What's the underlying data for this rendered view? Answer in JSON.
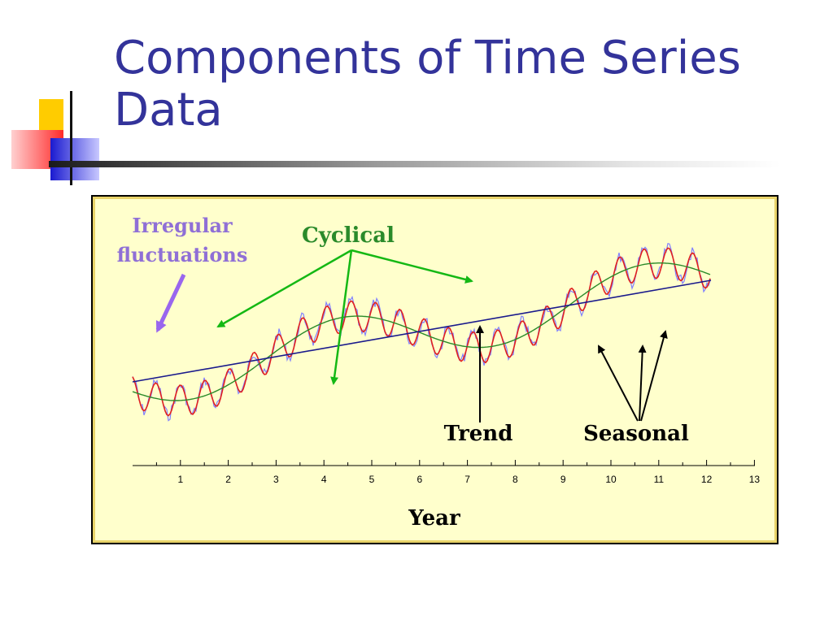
{
  "slide": {
    "title_line1": "Components of Time Series",
    "title_line2": "Data"
  },
  "diagram": {
    "labels": {
      "irregular_line1": "Irregular",
      "irregular_line2": "fluctuations",
      "cyclical": "Cyclical",
      "trend": "Trend",
      "seasonal": "Seasonal",
      "xaxis": "Year"
    },
    "ticks": [
      "1",
      "2",
      "3",
      "4",
      "5",
      "6",
      "7",
      "8",
      "9",
      "10",
      "11",
      "12",
      "13"
    ],
    "colors": {
      "title": "#33339a",
      "panel_bg": "#ffffcc",
      "trend": "#1a1a8c",
      "cyclical": "#2a8a2a",
      "seasonal": "#e02020",
      "irregular": "#8080ff",
      "arrow_green": "#14b814",
      "arrow_purple": "#9966ee",
      "label_purple": "#8f6fd6",
      "label_green": "#2a8a2a"
    }
  }
}
